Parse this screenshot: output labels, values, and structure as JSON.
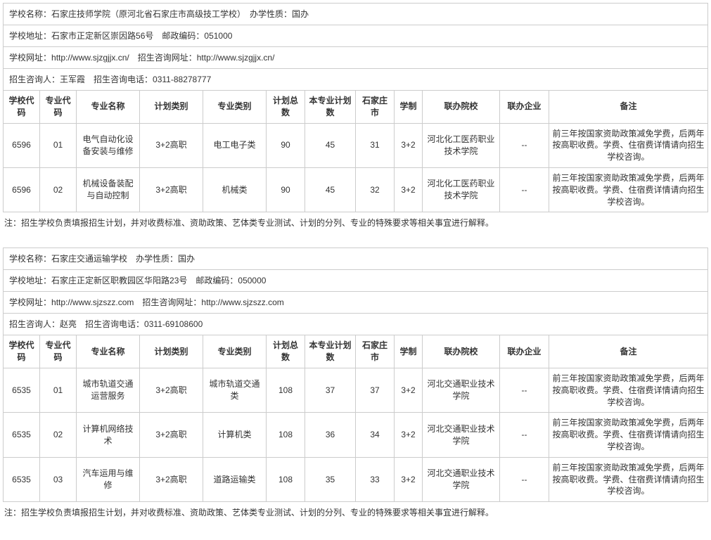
{
  "labels": {
    "school_name": "学校名称：",
    "type": "办学性质：",
    "address": "学校地址：",
    "zip": "邮政编码：",
    "site": "学校网址：",
    "consult_site": "招生咨询网址：",
    "contact": "招生咨询人：",
    "phone": "招生咨询电话："
  },
  "columns": {
    "c1": "学校代码",
    "c2": "专业代码",
    "c3": "专业名称",
    "c4": "计划类别",
    "c5": "专业类别",
    "c6": "计划总数",
    "c7": "本专业计划数",
    "c8": "石家庄市",
    "c9": "学制",
    "c10": "联办院校",
    "c11": "联办企业",
    "c12": "备注"
  },
  "note": "注：招生学校负责填报招生计划，并对收费标准、资助政策、艺体类专业测试、计划的分列、专业的特殊要求等相关事宜进行解释。",
  "schools": [
    {
      "name": "石家庄技师学院（原河北省石家庄市高级技工学校）",
      "type": "国办",
      "address": "石家市正定新区崇因路56号",
      "zip": "051000",
      "site": "http://www.sjzgjjx.cn/",
      "consult_site": "http://www.sjzgjjx.cn/",
      "contact": "王军霞",
      "phone": "0311-88278777",
      "rows": [
        {
          "c1": "6596",
          "c2": "01",
          "c3": "电气自动化设备安装与维修",
          "c4": "3+2高职",
          "c5": "电工电子类",
          "c6": "90",
          "c7": "45",
          "c8": "31",
          "c9": "3+2",
          "c10": "河北化工医药职业技术学院",
          "c11": "--",
          "c12": "前三年按国家资助政策减免学费，后两年按高职收费。学费、住宿费详情请向招生学校咨询。"
        },
        {
          "c1": "6596",
          "c2": "02",
          "c3": "机械设备装配与自动控制",
          "c4": "3+2高职",
          "c5": "机械类",
          "c6": "90",
          "c7": "45",
          "c8": "32",
          "c9": "3+2",
          "c10": "河北化工医药职业技术学院",
          "c11": "--",
          "c12": "前三年按国家资助政策减免学费，后两年按高职收费。学费、住宿费详情请向招生学校咨询。"
        }
      ]
    },
    {
      "name": "石家庄交通运输学校",
      "type": "国办",
      "address": "石家庄正定新区职教园区华阳路23号",
      "zip": "050000",
      "site": "http://www.sjzszz.com",
      "consult_site": "http://www.sjzszz.com",
      "contact": "赵亮",
      "phone": "0311-69108600",
      "rows": [
        {
          "c1": "6535",
          "c2": "01",
          "c3": "城市轨道交通运营服务",
          "c4": "3+2高职",
          "c5": "城市轨道交通类",
          "c6": "108",
          "c7": "37",
          "c8": "37",
          "c9": "3+2",
          "c10": "河北交通职业技术学院",
          "c11": "--",
          "c12": "前三年按国家资助政策减免学费，后两年按高职收费。学费、住宿费详情请向招生学校咨询。"
        },
        {
          "c1": "6535",
          "c2": "02",
          "c3": "计算机网络技术",
          "c4": "3+2高职",
          "c5": "计算机类",
          "c6": "108",
          "c7": "36",
          "c8": "34",
          "c9": "3+2",
          "c10": "河北交通职业技术学院",
          "c11": "--",
          "c12": "前三年按国家资助政策减免学费，后两年按高职收费。学费、住宿费详情请向招生学校咨询。"
        },
        {
          "c1": "6535",
          "c2": "03",
          "c3": "汽车运用与维修",
          "c4": "3+2高职",
          "c5": "道路运输类",
          "c6": "108",
          "c7": "35",
          "c8": "33",
          "c9": "3+2",
          "c10": "河北交通职业技术学院",
          "c11": "--",
          "c12": "前三年按国家资助政策减免学费，后两年按高职收费。学费、住宿费详情请向招生学校咨询。"
        }
      ]
    }
  ]
}
